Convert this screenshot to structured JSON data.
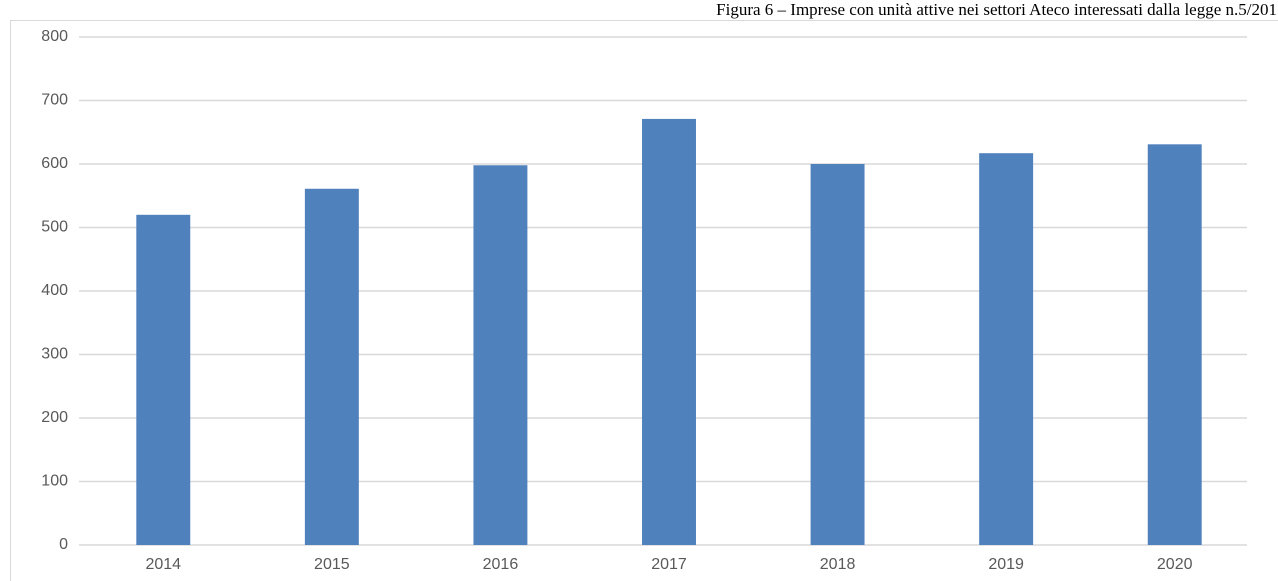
{
  "chart_data": {
    "type": "bar",
    "title": "Figura 6 – Imprese con unità attive nei settori Ateco interessati dalla legge n.5/201",
    "categories": [
      "2014",
      "2015",
      "2016",
      "2017",
      "2018",
      "2019",
      "2020"
    ],
    "values": [
      520,
      561,
      598,
      671,
      600,
      617,
      631
    ],
    "color": "#4f81bd",
    "ylim": [
      0,
      800
    ],
    "yticks": [
      0,
      100,
      200,
      300,
      400,
      500,
      600,
      700,
      800
    ],
    "grid": true
  }
}
